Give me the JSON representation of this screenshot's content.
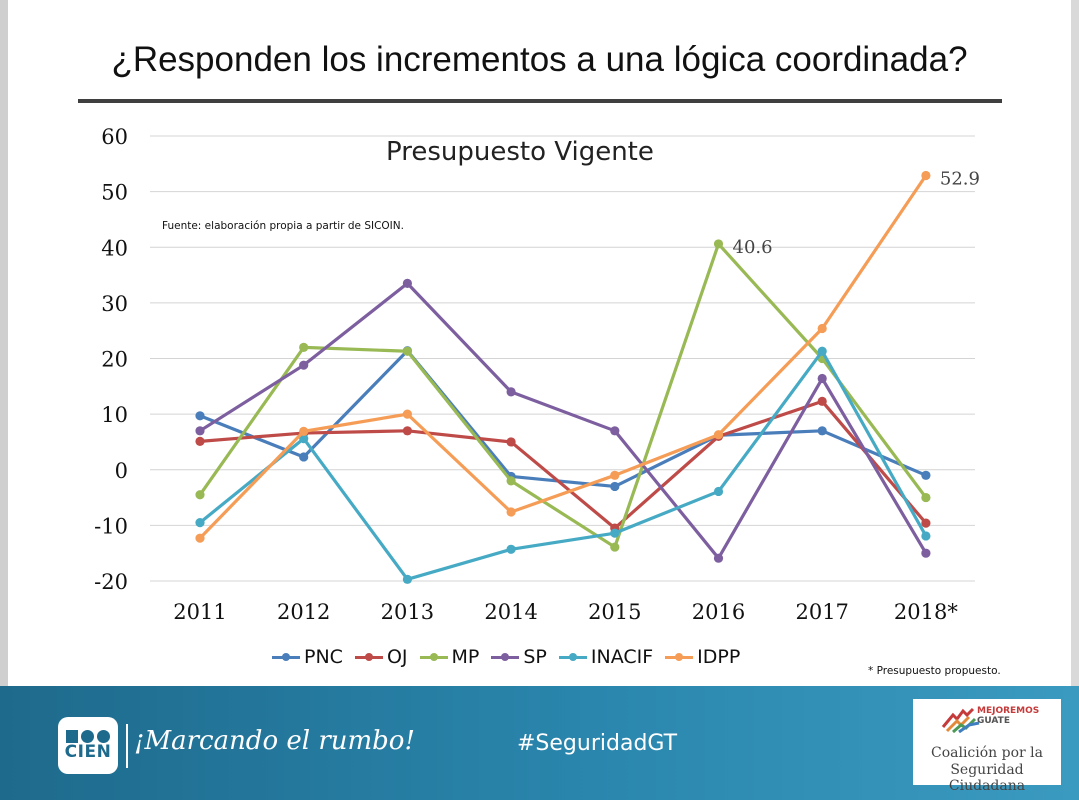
{
  "slide": {
    "title": "¿Responden los incrementos a una lógica coordinada?",
    "source_note": "Fuente: elaboración propia a partir de SICOIN.",
    "footnote": "* Presupuesto propuesto."
  },
  "chart_data": {
    "type": "line",
    "title": "Presupuesto Vigente",
    "xlabel": "",
    "ylabel": "",
    "categories": [
      "2011",
      "2012",
      "2013",
      "2014",
      "2015",
      "2016",
      "2017",
      "2018*"
    ],
    "ylim": [
      -20,
      60
    ],
    "yticks": [
      "-20",
      "-10",
      "0",
      "10",
      "20",
      "30",
      "40",
      "50",
      "60"
    ],
    "grid": true,
    "legend_position": "bottom",
    "series": [
      {
        "name": "PNC",
        "color": "#4a7ebb",
        "values": [
          9.7,
          2.3,
          21.4,
          -1.2,
          -3.0,
          6.2,
          7.0,
          -1.0
        ]
      },
      {
        "name": "OJ",
        "color": "#be4b48",
        "values": [
          5.1,
          6.6,
          7.0,
          5.0,
          -10.5,
          6.0,
          12.3,
          -9.6
        ]
      },
      {
        "name": "MP",
        "color": "#98b954",
        "values": [
          -4.5,
          22.0,
          21.3,
          -2.0,
          -13.9,
          40.6,
          20.0,
          -5.0
        ]
      },
      {
        "name": "SP",
        "color": "#7d5fa0",
        "values": [
          7.0,
          18.8,
          33.5,
          14.0,
          7.0,
          -15.9,
          16.4,
          -15.0
        ]
      },
      {
        "name": "INACIF",
        "color": "#46aac5",
        "values": [
          -9.5,
          5.6,
          -19.7,
          -14.3,
          -11.4,
          -3.9,
          21.3,
          -11.9
        ]
      },
      {
        "name": "IDPP",
        "color": "#f59d56",
        "values": [
          -12.3,
          6.9,
          10.0,
          -7.6,
          -1.0,
          6.3,
          25.4,
          52.9
        ]
      }
    ],
    "annotations": [
      {
        "text": "40.6",
        "series": "MP",
        "category": "2016",
        "value": 40.6
      },
      {
        "text": "52.9",
        "series": "IDPP",
        "category": "2018*",
        "value": 52.9
      }
    ]
  },
  "footer": {
    "logo_word": "CIEN",
    "slogan": "¡Marcando el rumbo!",
    "hashtag": "#SeguridadGT",
    "partner_brand_line1": "MEJOREMOS",
    "partner_brand_line2": "GUATE",
    "partner_line1": "Coalición por la",
    "partner_line2": "Seguridad Ciudadana"
  }
}
